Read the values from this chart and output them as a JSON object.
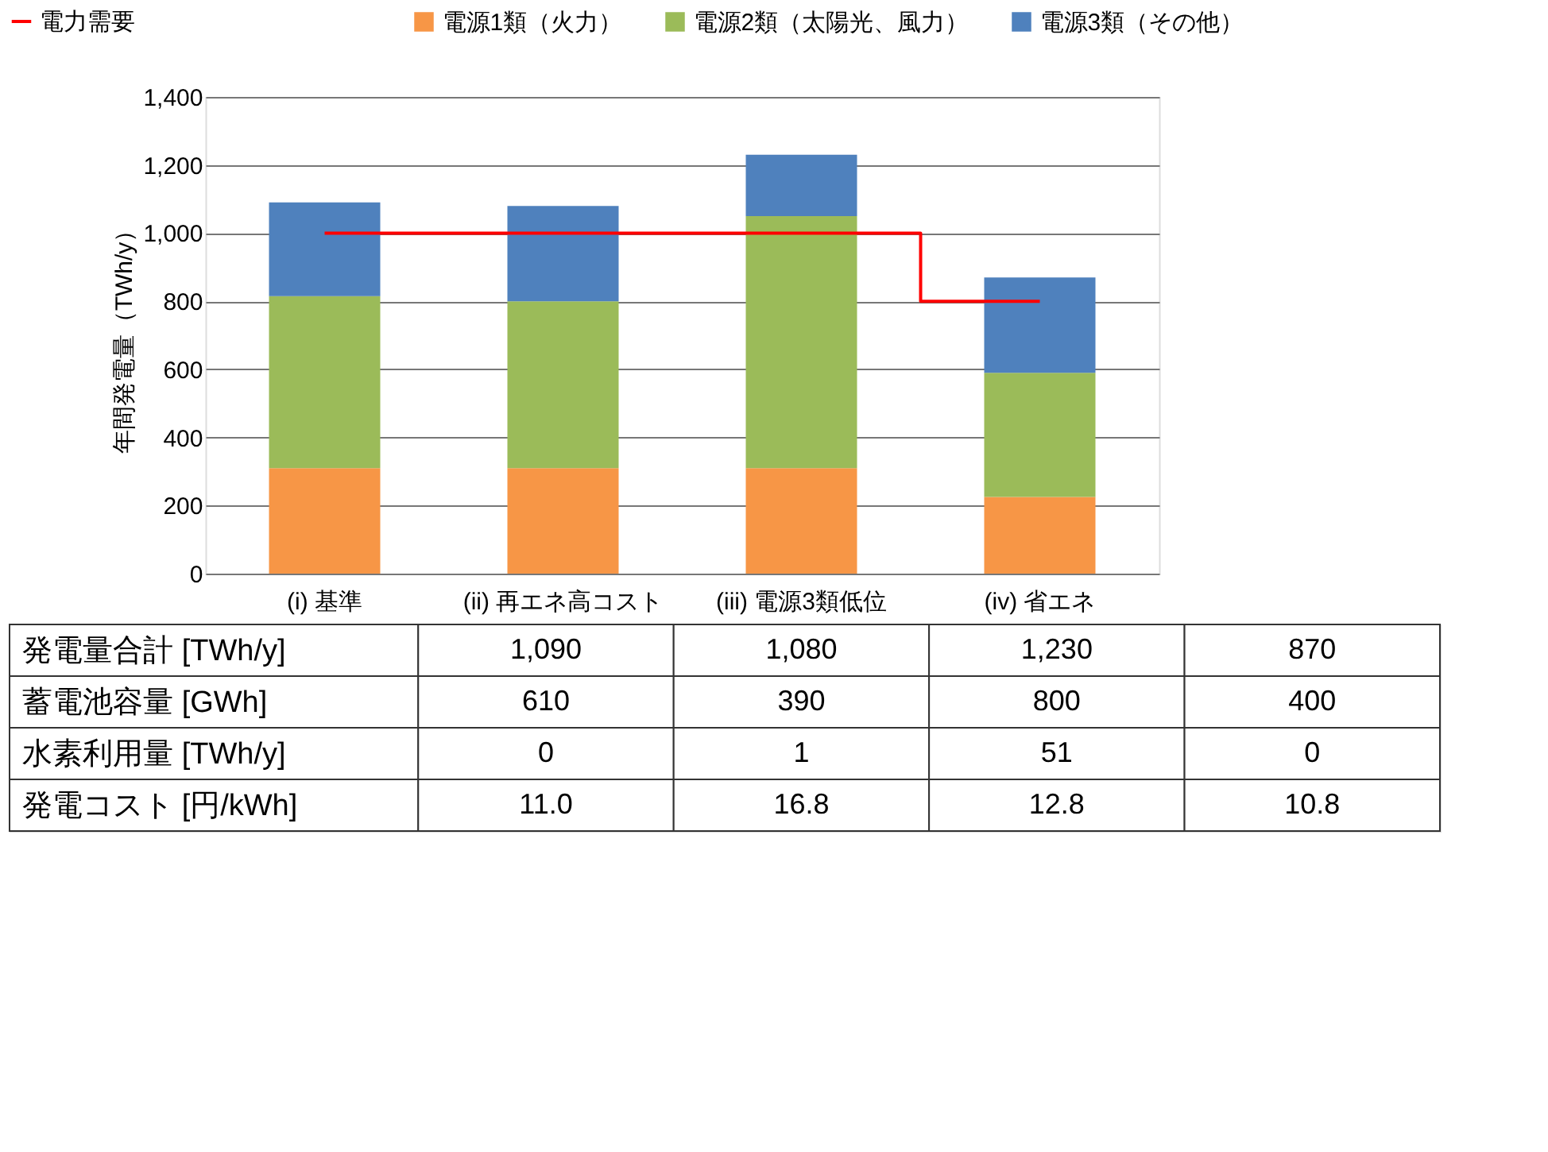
{
  "chart_data": [
    {
      "type": "bar",
      "stacked": true,
      "ylabel": "年間発電量（TWh/y）",
      "categories": [
        "(i) 基準",
        "(ii) 再エネ高コスト",
        "(iii) 電源3類低位",
        "(iv) 省エネ"
      ],
      "series": [
        {
          "name": "電力需要",
          "type": "step",
          "color": "#ff0000",
          "values": [
            1000,
            1000,
            1000,
            800
          ]
        },
        {
          "name": "電源1類（火力）",
          "color": "#f79646",
          "values": [
            310,
            310,
            310,
            225
          ]
        },
        {
          "name": "電源2類（太陽光、風力）",
          "color": "#9bbb59",
          "values": [
            505,
            490,
            740,
            365
          ]
        },
        {
          "name": "電源3類（その他）",
          "color": "#4f81bd",
          "values": [
            275,
            280,
            180,
            280
          ]
        }
      ],
      "ylim": [
        0,
        1400
      ],
      "yticks": [
        0,
        200,
        400,
        600,
        800,
        {
          "value": 1000,
          "label": "1,000"
        },
        {
          "value": 1200,
          "label": "1,200"
        },
        {
          "value": 1400,
          "label": "1,400"
        }
      ],
      "grid": "y",
      "legend": "top"
    },
    {
      "type": "other",
      "annotations": [
        "発電量合計  [TWh/y]",
        "1,090",
        "1,080",
        "1,230",
        "870",
        "蓄電池容量 [GWh]",
        "610",
        "390",
        "800",
        "400",
        "水素利用量  [TWh/y]",
        "0",
        "1",
        "51",
        "0",
        "発電コスト  [円/kWh]",
        "11.0",
        "16.8",
        "12.8",
        "10.8"
      ]
    }
  ]
}
